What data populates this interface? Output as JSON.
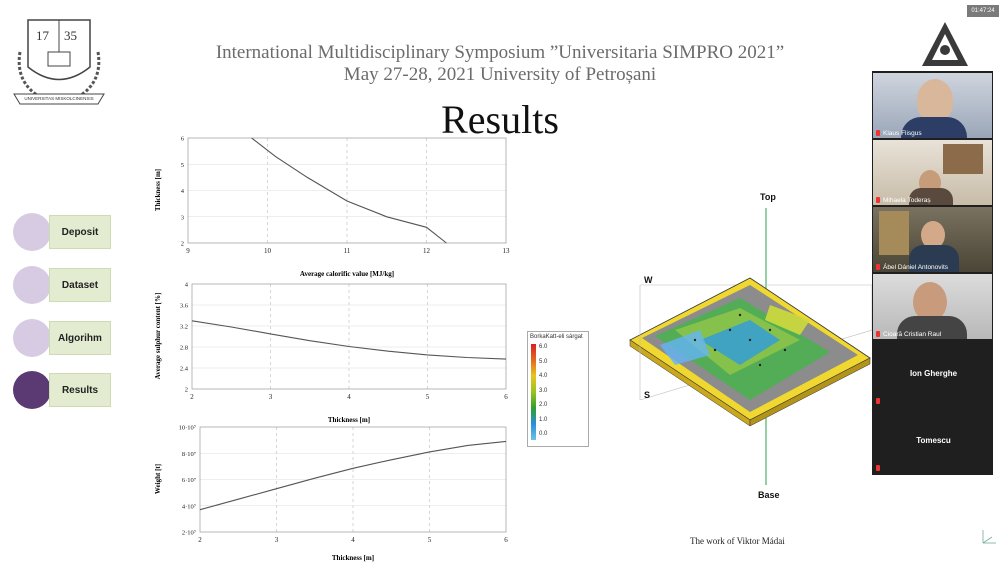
{
  "header": {
    "line1": "International Multidisciplinary Symposium ”Universitaria SIMPRO 2021”",
    "line2": "May 27-28, 2021 University of Petroșani"
  },
  "logo": {
    "year_left": "17",
    "year_right": "35",
    "ring_text": "UNIVERSITAS MISKOLCINENSIS"
  },
  "slide_title": "Results",
  "nav": {
    "items": [
      {
        "label": "Deposit",
        "active": false
      },
      {
        "label": "Dataset",
        "active": false
      },
      {
        "label": "Algorihm",
        "active": false
      },
      {
        "label": "Results",
        "active": true
      }
    ]
  },
  "charts": {
    "calorific": {
      "ylabel": "Thickness [m]",
      "xlabel": "Average calorific value [MJ/kg]",
      "xticks": [
        "9",
        "10",
        "11",
        "12",
        "13"
      ],
      "yticks": [
        "2",
        "3",
        "4",
        "5",
        "6"
      ]
    },
    "sulphur": {
      "ylabel": "Average sulphur content [%]",
      "xlabel": "Thickness [m]",
      "xticks": [
        "2",
        "3",
        "4",
        "5",
        "6"
      ],
      "yticks": [
        "2",
        "2.4",
        "2.8",
        "3.2",
        "3.6",
        "4"
      ]
    },
    "weight": {
      "ylabel": "Weight [t]",
      "xlabel": "Thickness [m]",
      "xticks": [
        "2",
        "3",
        "4",
        "5",
        "6"
      ],
      "yticks": [
        "2·10⁷",
        "4·10⁷",
        "6·10⁷",
        "8·10⁷",
        "10·10⁷"
      ]
    }
  },
  "chart_data": [
    {
      "type": "line",
      "x": [
        9.8,
        10.1,
        10.5,
        11.0,
        11.5,
        12.0,
        12.25
      ],
      "y": [
        6.0,
        5.3,
        4.5,
        3.6,
        3.0,
        2.6,
        2.0
      ],
      "xlabel": "Average calorific value [MJ/kg]",
      "ylabel": "Thickness [m]",
      "xlim": [
        9,
        13
      ],
      "ylim": [
        2,
        6
      ]
    },
    {
      "type": "line",
      "x": [
        2,
        2.5,
        3,
        3.5,
        4,
        4.5,
        5,
        5.5,
        6
      ],
      "y": [
        3.3,
        3.18,
        3.05,
        2.92,
        2.81,
        2.72,
        2.65,
        2.6,
        2.57
      ],
      "xlabel": "Thickness [m]",
      "ylabel": "Average sulphur content [%]",
      "xlim": [
        2,
        6
      ],
      "ylim": [
        2,
        4
      ]
    },
    {
      "type": "line",
      "x": [
        2,
        2.5,
        3,
        3.5,
        4,
        4.5,
        5,
        5.5,
        6
      ],
      "y": [
        37000000,
        45000000,
        53000000,
        61000000,
        68500000,
        75000000,
        81000000,
        86000000,
        89000000
      ],
      "xlabel": "Thickness [m]",
      "ylabel": "Weight [t]",
      "xlim": [
        2,
        6
      ],
      "ylim": [
        20000000,
        100000000
      ]
    }
  ],
  "model3d": {
    "top_label": "Top",
    "base_label": "Base",
    "w_label": "W",
    "s_label": "S",
    "legend_title": "BorkaKatt-eli sárgat",
    "legend_values": [
      "6.0",
      "5.0",
      "4.0",
      "3.0",
      "2.0",
      "1.0",
      "0.0"
    ],
    "legend_colors": [
      "#d92020",
      "#e36a1f",
      "#e6c51f",
      "#9ac41f",
      "#2ea02e",
      "#2a8fd8",
      "#6fc0e8"
    ]
  },
  "credit": "The work of Viktor Mádai",
  "video": {
    "timer": "01:47:24",
    "participants": [
      {
        "name": "Klaus Flisgus"
      },
      {
        "name": "Mihaela Toderaș"
      },
      {
        "name": "Ábel Dániel Antonovits"
      },
      {
        "name": "Cioară Cristian Raul"
      },
      {
        "name": "Ion Gherghe"
      },
      {
        "name": "Tomescu"
      }
    ]
  }
}
